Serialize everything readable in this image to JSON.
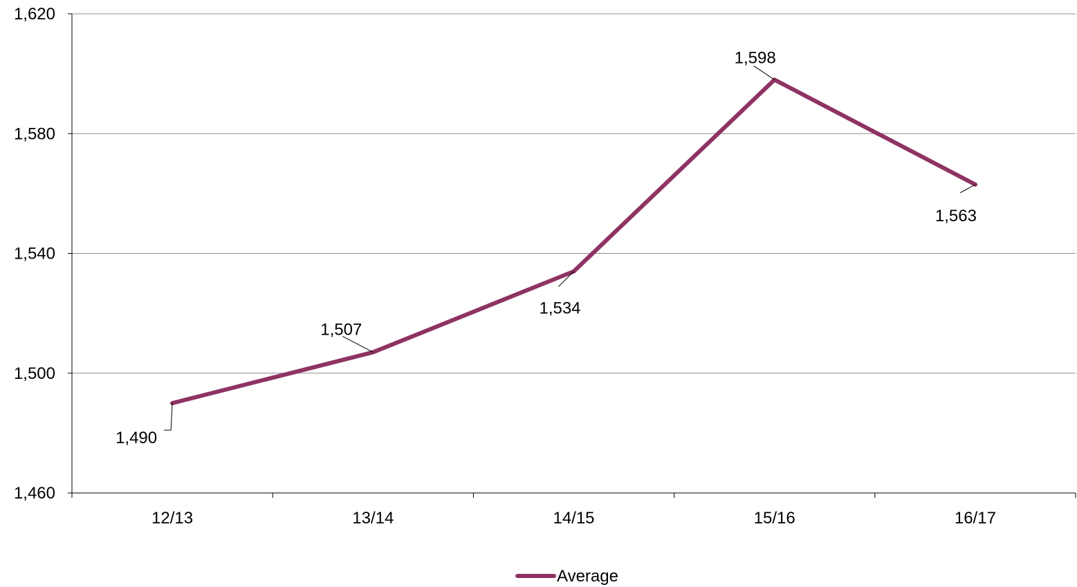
{
  "chart_data": {
    "type": "line",
    "categories": [
      "12/13",
      "13/14",
      "14/15",
      "15/16",
      "16/17"
    ],
    "series": [
      {
        "name": "Average",
        "values": [
          1490,
          1507,
          1534,
          1598,
          1563
        ],
        "color": "#8e3363"
      }
    ],
    "data_labels": [
      "1,490",
      "1,507",
      "1,534",
      "1,598",
      "1,563"
    ],
    "ylim": [
      1460,
      1620
    ],
    "yticks": [
      1460,
      1500,
      1540,
      1580,
      1620
    ],
    "ytick_labels": [
      "1,460",
      "1,500",
      "1,540",
      "1,580",
      "1,620"
    ],
    "grid": true,
    "legend_position": "bottom",
    "title": "",
    "xlabel": "",
    "ylabel": ""
  }
}
